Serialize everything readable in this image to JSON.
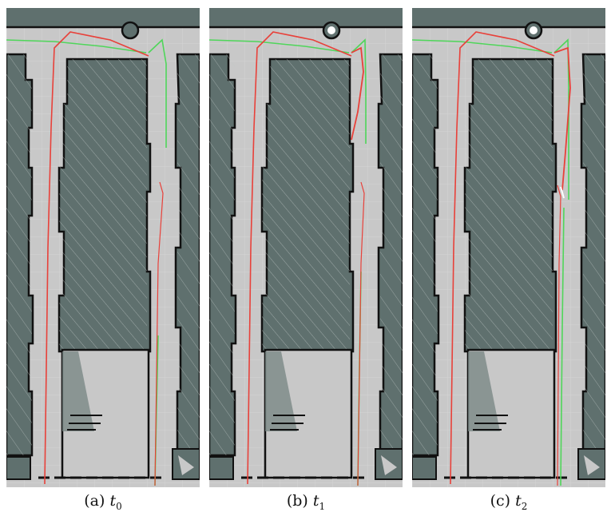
{
  "panels": [
    {
      "id": "a",
      "caption_label": "(a)",
      "caption_symbol": "t",
      "caption_sub": "0"
    },
    {
      "id": "b",
      "caption_label": "(b)",
      "caption_symbol": "t",
      "caption_sub": "1"
    },
    {
      "id": "c",
      "caption_label": "(c)",
      "caption_symbol": "t",
      "caption_sub": "2"
    }
  ],
  "colors": {
    "free_space": "#c8c8c8",
    "unknown": "#5f706e",
    "wall": "#111111",
    "grid": "#dcdcdc",
    "trajectory_red": "#e8413a",
    "trajectory_green": "#4fd65a"
  }
}
